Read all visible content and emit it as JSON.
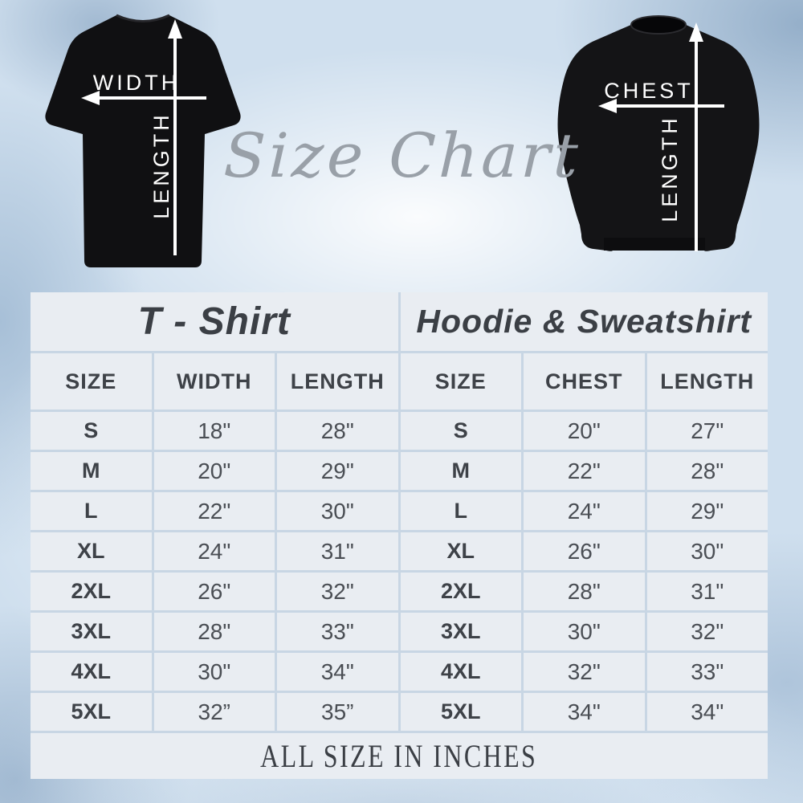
{
  "hero": {
    "script_title": "Size Chart",
    "tshirt": {
      "width_label": "WIDTH",
      "length_label": "LENGTH"
    },
    "sweatshirt": {
      "chest_label": "CHEST",
      "length_label": "LENGTH"
    }
  },
  "table": {
    "left": {
      "title": "T - Shirt",
      "columns": [
        "SIZE",
        "WIDTH",
        "LENGTH"
      ],
      "rows": [
        [
          "S",
          "18\"",
          "28\""
        ],
        [
          "M",
          "20\"",
          "29\""
        ],
        [
          "L",
          "22\"",
          "30\""
        ],
        [
          "XL",
          "24\"",
          "31\""
        ],
        [
          "2XL",
          "26\"",
          "32\""
        ],
        [
          "3XL",
          "28\"",
          "33\""
        ],
        [
          "4XL",
          "30\"",
          "34\""
        ],
        [
          "5XL",
          "32”",
          "35”"
        ]
      ]
    },
    "right": {
      "title": "Hoodie & Sweatshirt",
      "columns": [
        "SIZE",
        "CHEST",
        "LENGTH"
      ],
      "rows": [
        [
          "S",
          "20\"",
          "27\""
        ],
        [
          "M",
          "22\"",
          "28\""
        ],
        [
          "L",
          "24\"",
          "29\""
        ],
        [
          "XL",
          "26\"",
          "30\""
        ],
        [
          "2XL",
          "28\"",
          "31\""
        ],
        [
          "3XL",
          "30\"",
          "32\""
        ],
        [
          "4XL",
          "32\"",
          "33\""
        ],
        [
          "5XL",
          "34\"",
          "34\""
        ]
      ]
    },
    "footer": "ALL SIZE IN INCHES"
  },
  "colors": {
    "background_base": "#cfdfee",
    "cell_background": "#e9edf2",
    "grid_line": "#c8d6e4",
    "text_dark": "#3e4248",
    "script_gray": "#99a0a8",
    "garment_black": "#121214",
    "arrow_white": "#ffffff"
  },
  "chart_data": [
    {
      "type": "table",
      "title": "T - Shirt",
      "columns": [
        "SIZE",
        "WIDTH",
        "LENGTH"
      ],
      "rows": [
        {
          "size": "S",
          "width_in": 18,
          "length_in": 28
        },
        {
          "size": "M",
          "width_in": 20,
          "length_in": 29
        },
        {
          "size": "L",
          "width_in": 22,
          "length_in": 30
        },
        {
          "size": "XL",
          "width_in": 24,
          "length_in": 31
        },
        {
          "size": "2XL",
          "width_in": 26,
          "length_in": 32
        },
        {
          "size": "3XL",
          "width_in": 28,
          "length_in": 33
        },
        {
          "size": "4XL",
          "width_in": 30,
          "length_in": 34
        },
        {
          "size": "5XL",
          "width_in": 32,
          "length_in": 35
        }
      ],
      "units": "inches"
    },
    {
      "type": "table",
      "title": "Hoodie & Sweatshirt",
      "columns": [
        "SIZE",
        "CHEST",
        "LENGTH"
      ],
      "rows": [
        {
          "size": "S",
          "chest_in": 20,
          "length_in": 27
        },
        {
          "size": "M",
          "chest_in": 22,
          "length_in": 28
        },
        {
          "size": "L",
          "chest_in": 24,
          "length_in": 29
        },
        {
          "size": "XL",
          "chest_in": 26,
          "length_in": 30
        },
        {
          "size": "2XL",
          "chest_in": 28,
          "length_in": 31
        },
        {
          "size": "3XL",
          "chest_in": 30,
          "length_in": 32
        },
        {
          "size": "4XL",
          "chest_in": 32,
          "length_in": 33
        },
        {
          "size": "5XL",
          "chest_in": 34,
          "length_in": 34
        }
      ],
      "units": "inches"
    }
  ]
}
